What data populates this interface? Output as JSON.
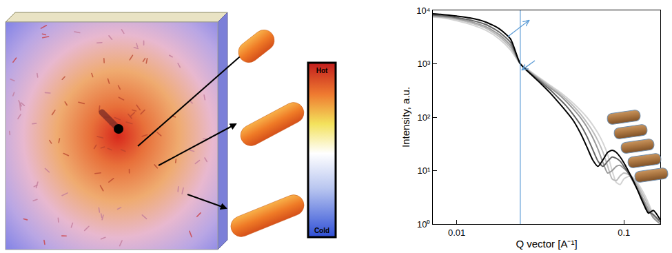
{
  "chart_data": {
    "type": "line",
    "x_label": "Q vector [A⁻¹]",
    "y_label": "Intensity, a.u.",
    "log": true,
    "grid": false,
    "x": [
      0.0072,
      0.008,
      0.009,
      0.01,
      0.012,
      0.015,
      0.018,
      0.021,
      0.024,
      0.028,
      0.032,
      0.036,
      0.04,
      0.045,
      0.05,
      0.055,
      0.06,
      0.065,
      0.07,
      0.075,
      0.08,
      0.085,
      0.09,
      0.095,
      0.1,
      0.11,
      0.12,
      0.13,
      0.14,
      0.15,
      0.165
    ],
    "series": [
      {
        "color": "#d4d4d4",
        "values": [
          7500,
          7300,
          6900,
          6400,
          5500,
          4200,
          2900,
          1800,
          1000,
          700,
          520,
          400,
          320,
          240,
          180,
          135,
          100,
          72,
          50,
          33,
          20,
          10,
          6,
          5.5,
          7,
          8,
          6,
          4,
          2.5,
          1.5,
          1.0
        ]
      },
      {
        "color": "#bdbdbd",
        "values": [
          7700,
          7500,
          7200,
          6800,
          5900,
          4600,
          3200,
          2000,
          1000,
          680,
          500,
          380,
          300,
          220,
          160,
          115,
          80,
          55,
          36,
          22,
          12,
          7,
          6.5,
          8,
          9,
          8,
          5.5,
          3.5,
          2.2,
          1.4,
          1.0
        ]
      },
      {
        "color": "#9a9a9a",
        "values": [
          7900,
          7700,
          7400,
          7000,
          6200,
          4900,
          3500,
          2200,
          1000,
          660,
          480,
          360,
          280,
          200,
          140,
          98,
          66,
          42,
          25,
          14,
          9,
          10,
          12,
          12.5,
          11,
          8,
          5,
          3,
          1.9,
          1.3,
          1.0
        ]
      },
      {
        "color": "#666666",
        "values": [
          8200,
          8000,
          7700,
          7300,
          6600,
          5400,
          3900,
          2500,
          1000,
          640,
          450,
          330,
          240,
          165,
          110,
          72,
          44,
          25,
          15,
          12,
          15,
          18,
          17,
          15,
          12,
          7.5,
          4.5,
          2.7,
          1.7,
          1.5,
          1.1
        ]
      },
      {
        "color": "#000000",
        "values": [
          8600,
          8400,
          8100,
          7800,
          7200,
          6000,
          4500,
          2900,
          1000,
          620,
          420,
          290,
          200,
          130,
          85,
          50,
          28,
          16,
          12,
          16,
          22,
          24,
          22,
          18,
          14,
          8,
          4.5,
          2.5,
          1.6,
          1.8,
          1.2
        ]
      }
    ],
    "vertical_line": {
      "x": 0.024,
      "color": "#5b9bd5"
    },
    "xlim": [
      0.0072,
      0.165
    ],
    "xticks": [
      0.01,
      0.1
    ],
    "ylim": [
      1,
      10000
    ],
    "yticks": [
      {
        "value": 1,
        "label": "10⁰"
      },
      {
        "value": 10,
        "label": "10¹"
      },
      {
        "value": 100,
        "label": "10²"
      },
      {
        "value": 1000,
        "label": "10³"
      },
      {
        "value": 10000,
        "label": "10⁴"
      }
    ]
  },
  "diagram": {
    "colorbar": {
      "top_label": "Hot",
      "bottom_label": "Cold"
    }
  }
}
